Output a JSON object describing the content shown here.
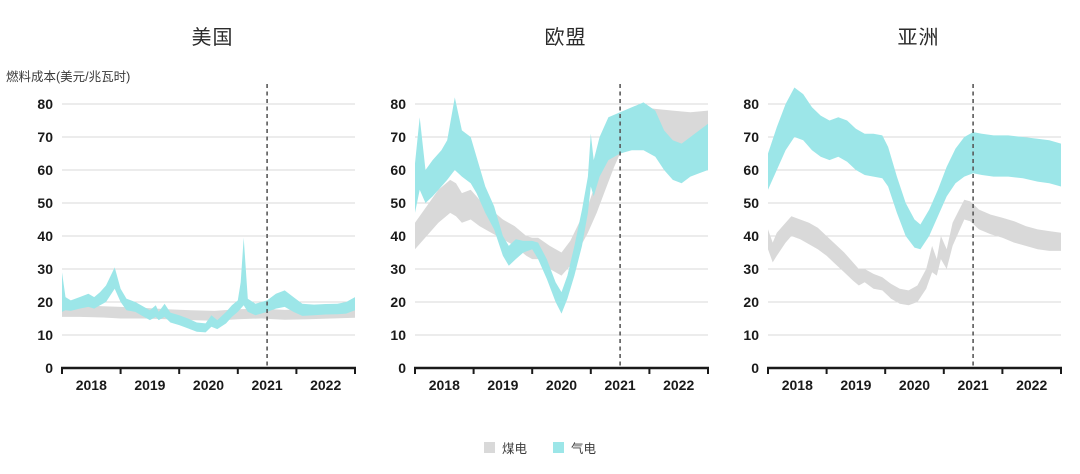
{
  "y_axis_label": "燃料成本(美元/兆瓦时)",
  "colors": {
    "coal_band": "#d9d9d9",
    "gas_band": "#9ce6e8",
    "gridline": "#dadada",
    "axis": "#1a1a1a",
    "dashed_line": "#595959",
    "tick_text": "#1a1a1a"
  },
  "legend": [
    {
      "slug": "coal",
      "label": "煤电",
      "color": "#d9d9d9"
    },
    {
      "slug": "gas",
      "label": "气电",
      "color": "#9ce6e8"
    }
  ],
  "chart_data": [
    {
      "type": "area",
      "slug": "us",
      "title": "美国",
      "ylabel": "燃料成本(美元/兆瓦时)",
      "xlim": [
        2018,
        2023
      ],
      "ylim": [
        0,
        80
      ],
      "y_ticks": [
        "0",
        "10",
        "20",
        "30",
        "40",
        "50",
        "60",
        "70",
        "80"
      ],
      "x_tick_labels": [
        "2018",
        "2019",
        "2020",
        "2021",
        "2022"
      ],
      "dashed_line_x": 2021.5,
      "grid": true,
      "series": [
        {
          "name": "煤电",
          "color": "#d9d9d9",
          "points": [
            [
              2018.0,
              15.5,
              19
            ],
            [
              2018.3,
              15.5,
              19
            ],
            [
              2018.7,
              15.3,
              18.7
            ],
            [
              2019.0,
              15,
              18.5
            ],
            [
              2019.4,
              15,
              18.2
            ],
            [
              2019.8,
              14.8,
              17.8
            ],
            [
              2020.2,
              14.5,
              17.5
            ],
            [
              2020.6,
              14.3,
              17.3
            ],
            [
              2021.0,
              14.8,
              17.8
            ],
            [
              2021.4,
              15,
              18
            ],
            [
              2021.8,
              14.6,
              17.6
            ],
            [
              2022.2,
              14.8,
              17.8
            ],
            [
              2022.6,
              15,
              18
            ],
            [
              2023.0,
              15.2,
              18.4
            ]
          ]
        },
        {
          "name": "气电",
          "color": "#9ce6e8",
          "points": [
            [
              2018.0,
              17,
              29
            ],
            [
              2018.06,
              17.5,
              21.5
            ],
            [
              2018.15,
              17.3,
              20.5
            ],
            [
              2018.3,
              18,
              21.5
            ],
            [
              2018.45,
              18.5,
              22.5
            ],
            [
              2018.55,
              18,
              21.5
            ],
            [
              2018.65,
              19,
              23
            ],
            [
              2018.75,
              20,
              25
            ],
            [
              2018.9,
              24,
              30.5
            ],
            [
              2019.0,
              20,
              24
            ],
            [
              2019.1,
              17.5,
              21
            ],
            [
              2019.25,
              17,
              20
            ],
            [
              2019.35,
              16,
              19
            ],
            [
              2019.5,
              14.5,
              17.5
            ],
            [
              2019.6,
              15.5,
              19
            ],
            [
              2019.65,
              14.5,
              17
            ],
            [
              2019.75,
              15.5,
              19.5
            ],
            [
              2019.85,
              13.8,
              16.8
            ],
            [
              2020.0,
              13,
              16
            ],
            [
              2020.15,
              12,
              15
            ],
            [
              2020.3,
              11,
              13.8
            ],
            [
              2020.45,
              10.8,
              13.5
            ],
            [
              2020.55,
              12.5,
              16
            ],
            [
              2020.65,
              11.8,
              14.5
            ],
            [
              2020.8,
              13.5,
              17
            ],
            [
              2020.9,
              15.5,
              19
            ],
            [
              2021.0,
              17,
              20.5
            ],
            [
              2021.05,
              18,
              26
            ],
            [
              2021.1,
              19,
              39.5
            ],
            [
              2021.17,
              17,
              21
            ],
            [
              2021.3,
              16,
              19.5
            ],
            [
              2021.5,
              17,
              20.5
            ],
            [
              2021.65,
              18,
              22.5
            ],
            [
              2021.8,
              18.5,
              23.5
            ],
            [
              2021.95,
              17,
              21.5
            ],
            [
              2022.1,
              15.8,
              19.5
            ],
            [
              2022.3,
              16,
              19.2
            ],
            [
              2022.5,
              16.2,
              19.4
            ],
            [
              2022.7,
              16.3,
              19.5
            ],
            [
              2022.85,
              16.5,
              20
            ],
            [
              2023.0,
              17.5,
              21.5
            ]
          ]
        }
      ]
    },
    {
      "type": "area",
      "slug": "eu",
      "title": "欧盟",
      "ylabel": "燃料成本(美元/兆瓦时)",
      "xlim": [
        2018,
        2023
      ],
      "ylim": [
        0,
        80
      ],
      "y_ticks": [
        "0",
        "10",
        "20",
        "30",
        "40",
        "50",
        "60",
        "70",
        "80"
      ],
      "x_tick_labels": [
        "2018",
        "2019",
        "2020",
        "2021",
        "2022"
      ],
      "dashed_line_x": 2021.5,
      "grid": true,
      "series": [
        {
          "name": "煤电",
          "color": "#d9d9d9",
          "points": [
            [
              2018.0,
              36,
              44
            ],
            [
              2018.2,
              40,
              49
            ],
            [
              2018.4,
              44,
              54
            ],
            [
              2018.6,
              47,
              57
            ],
            [
              2018.7,
              46,
              56
            ],
            [
              2018.8,
              44,
              53
            ],
            [
              2018.95,
              45,
              54
            ],
            [
              2019.1,
              43,
              51
            ],
            [
              2019.3,
              41,
              48
            ],
            [
              2019.5,
              39,
              45
            ],
            [
              2019.7,
              37,
              43
            ],
            [
              2019.9,
              34,
              40
            ],
            [
              2020.0,
              33,
              39.5
            ],
            [
              2020.1,
              33,
              39.5
            ],
            [
              2020.3,
              30,
              37
            ],
            [
              2020.5,
              28,
              35
            ],
            [
              2020.65,
              31,
              38.5
            ],
            [
              2020.8,
              36,
              44
            ],
            [
              2020.95,
              41,
              49
            ],
            [
              2021.1,
              47,
              57
            ],
            [
              2021.25,
              54,
              66
            ],
            [
              2021.4,
              61,
              73
            ],
            [
              2021.5,
              65,
              77
            ],
            [
              2021.7,
              67,
              78.5
            ],
            [
              2021.9,
              68,
              79
            ],
            [
              2022.1,
              67.5,
              78.5
            ],
            [
              2022.4,
              66.5,
              78
            ],
            [
              2022.7,
              66,
              77.5
            ],
            [
              2023.0,
              66,
              78
            ]
          ]
        },
        {
          "name": "气电",
          "color": "#9ce6e8",
          "points": [
            [
              2018.0,
              47,
              62
            ],
            [
              2018.08,
              54,
              76
            ],
            [
              2018.18,
              50,
              60
            ],
            [
              2018.3,
              52,
              63
            ],
            [
              2018.45,
              55,
              66
            ],
            [
              2018.55,
              57,
              69
            ],
            [
              2018.68,
              60,
              82
            ],
            [
              2018.8,
              58,
              72
            ],
            [
              2018.95,
              56,
              70
            ],
            [
              2019.05,
              53,
              64
            ],
            [
              2019.2,
              47,
              55
            ],
            [
              2019.35,
              42,
              49
            ],
            [
              2019.5,
              34,
              40
            ],
            [
              2019.6,
              31,
              37
            ],
            [
              2019.72,
              33,
              39
            ],
            [
              2019.85,
              35,
              38.5
            ],
            [
              2020.0,
              36,
              38.5
            ],
            [
              2020.1,
              33,
              38
            ],
            [
              2020.25,
              27,
              33
            ],
            [
              2020.4,
              20,
              26
            ],
            [
              2020.5,
              16.5,
              23
            ],
            [
              2020.6,
              21,
              28
            ],
            [
              2020.72,
              28,
              37
            ],
            [
              2020.85,
              37,
              48
            ],
            [
              2020.95,
              47,
              58
            ],
            [
              2021.0,
              55,
              71
            ],
            [
              2021.05,
              52,
              63
            ],
            [
              2021.15,
              58,
              70
            ],
            [
              2021.3,
              63,
              76
            ],
            [
              2021.5,
              65,
              77.5
            ],
            [
              2021.7,
              66,
              79
            ],
            [
              2021.9,
              66,
              80.5
            ],
            [
              2022.1,
              64,
              78
            ],
            [
              2022.25,
              60,
              72
            ],
            [
              2022.4,
              57,
              69
            ],
            [
              2022.55,
              56,
              68
            ],
            [
              2022.7,
              58,
              70
            ],
            [
              2022.85,
              59,
              72
            ],
            [
              2023.0,
              60,
              74
            ]
          ]
        }
      ]
    },
    {
      "type": "area",
      "slug": "asia",
      "title": "亚洲",
      "ylabel": "燃料成本(美元/兆瓦时)",
      "xlim": [
        2018,
        2023
      ],
      "ylim": [
        0,
        80
      ],
      "y_ticks": [
        "0",
        "10",
        "20",
        "30",
        "40",
        "50",
        "60",
        "70",
        "80"
      ],
      "x_tick_labels": [
        "2018",
        "2019",
        "2020",
        "2021",
        "2022"
      ],
      "dashed_line_x": 2021.5,
      "grid": true,
      "series": [
        {
          "name": "煤电",
          "color": "#d9d9d9",
          "points": [
            [
              2018.0,
              36,
              42
            ],
            [
              2018.08,
              32,
              38
            ],
            [
              2018.15,
              34,
              41
            ],
            [
              2018.3,
              38,
              44
            ],
            [
              2018.4,
              40,
              46
            ],
            [
              2018.55,
              39,
              45
            ],
            [
              2018.7,
              37.5,
              44
            ],
            [
              2018.85,
              36,
              42.5
            ],
            [
              2019.0,
              34,
              40
            ],
            [
              2019.15,
              31.5,
              37.5
            ],
            [
              2019.3,
              29,
              35
            ],
            [
              2019.45,
              26.5,
              32
            ],
            [
              2019.55,
              25,
              30
            ],
            [
              2019.65,
              26,
              30
            ],
            [
              2019.8,
              24,
              28.5
            ],
            [
              2019.95,
              23.5,
              27.5
            ],
            [
              2020.1,
              21,
              25.5
            ],
            [
              2020.25,
              19.5,
              24
            ],
            [
              2020.4,
              19,
              23.5
            ],
            [
              2020.55,
              20,
              25
            ],
            [
              2020.7,
              24,
              30
            ],
            [
              2020.8,
              29,
              37
            ],
            [
              2020.88,
              28,
              33
            ],
            [
              2020.95,
              33,
              40
            ],
            [
              2021.05,
              30,
              36
            ],
            [
              2021.15,
              37,
              44
            ],
            [
              2021.25,
              41,
              47.5
            ],
            [
              2021.35,
              45,
              51
            ],
            [
              2021.45,
              44.5,
              50.5
            ],
            [
              2021.6,
              42,
              48
            ],
            [
              2021.8,
              40.5,
              46.5
            ],
            [
              2022.0,
              39.5,
              45.5
            ],
            [
              2022.2,
              38,
              44.5
            ],
            [
              2022.4,
              37,
              43
            ],
            [
              2022.6,
              36,
              42
            ],
            [
              2022.8,
              35.5,
              41.5
            ],
            [
              2023.0,
              35.5,
              41
            ]
          ]
        },
        {
          "name": "气电",
          "color": "#9ce6e8",
          "points": [
            [
              2018.0,
              54,
              65
            ],
            [
              2018.15,
              60,
              73
            ],
            [
              2018.3,
              66,
              80
            ],
            [
              2018.45,
              70,
              85
            ],
            [
              2018.6,
              69,
              83
            ],
            [
              2018.75,
              66,
              79
            ],
            [
              2018.9,
              64,
              76.5
            ],
            [
              2019.05,
              63,
              75
            ],
            [
              2019.2,
              64,
              76
            ],
            [
              2019.35,
              62.5,
              75
            ],
            [
              2019.5,
              60,
              72.5
            ],
            [
              2019.65,
              58.5,
              71
            ],
            [
              2019.8,
              58,
              71
            ],
            [
              2019.95,
              57.5,
              70.5
            ],
            [
              2020.05,
              55,
              67
            ],
            [
              2020.2,
              47,
              58
            ],
            [
              2020.35,
              40,
              50
            ],
            [
              2020.5,
              36.5,
              45
            ],
            [
              2020.6,
              36,
              43.5
            ],
            [
              2020.75,
              40,
              48
            ],
            [
              2020.9,
              46,
              54
            ],
            [
              2021.05,
              52,
              61
            ],
            [
              2021.2,
              56,
              66.5
            ],
            [
              2021.35,
              58,
              70
            ],
            [
              2021.5,
              59,
              71.5
            ],
            [
              2021.65,
              58.5,
              71
            ],
            [
              2021.85,
              58,
              70.5
            ],
            [
              2022.1,
              58,
              70.5
            ],
            [
              2022.35,
              57.5,
              70
            ],
            [
              2022.6,
              56.5,
              69.5
            ],
            [
              2022.8,
              56,
              69
            ],
            [
              2023.0,
              55,
              68
            ]
          ]
        }
      ]
    }
  ]
}
